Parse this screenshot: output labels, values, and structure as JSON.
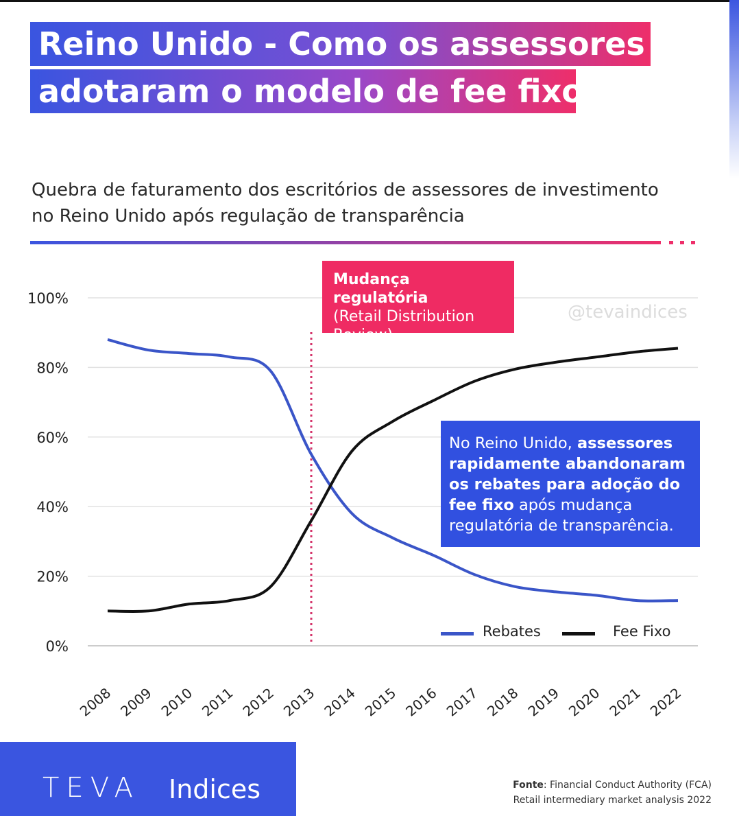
{
  "title": {
    "line1": "Reino Unido - Como os assessores",
    "line2": "adotaram o modelo de fee fixo"
  },
  "subtitle": {
    "line1": "Quebra de faturamento dos escritórios de assessores de investimento",
    "line2": "no Reino Unido após regulação de transparência"
  },
  "watermark": "@tevaindices",
  "regulatory_callout": {
    "title": "Mudança regulatória",
    "body": "(Retail Distribution Review)"
  },
  "insight_callout": {
    "part1": "No Reino Unido, ",
    "part2_bold": "assessores rapidamente abandonaram os rebates para adoção do fee fixo",
    "part3": " após mudança regulatória de transparência."
  },
  "colors": {
    "rebates": "#3a55c8",
    "fee_fixo": "#111111",
    "accent_pink": "#ee2e6a",
    "accent_blue": "#3150e0"
  },
  "chart_data": {
    "type": "line",
    "x": [
      "2008",
      "2009",
      "2010",
      "2011",
      "2012",
      "2013",
      "2014",
      "2015",
      "2016",
      "2017",
      "2018",
      "2019",
      "2020",
      "2021",
      "2022"
    ],
    "ylim": [
      0,
      100
    ],
    "yticks": [
      "0%",
      "20%",
      "40%",
      "60%",
      "80%",
      "100%"
    ],
    "grid": true,
    "legend_position": "bottom-right",
    "series": [
      {
        "name": "Rebates",
        "values": [
          88,
          85,
          84,
          83,
          79,
          55,
          38,
          31,
          26,
          20.5,
          17,
          15.5,
          14.5,
          13,
          13
        ]
      },
      {
        "name": "Fee Fixo",
        "values": [
          10,
          10,
          12,
          13,
          17,
          36,
          56,
          64.5,
          70.5,
          76,
          79.5,
          81.5,
          83,
          84.5,
          85.5
        ]
      }
    ],
    "annotation": {
      "label": "Mudança regulatória",
      "x_position": 2012.5
    }
  },
  "brand": {
    "logo": "TEVA",
    "logo_sub": "Indices"
  },
  "source": {
    "label": "Fonte",
    "text": ": Financial Conduct Authority (FCA)",
    "line2": "Retail intermediary market analysis 2022"
  }
}
